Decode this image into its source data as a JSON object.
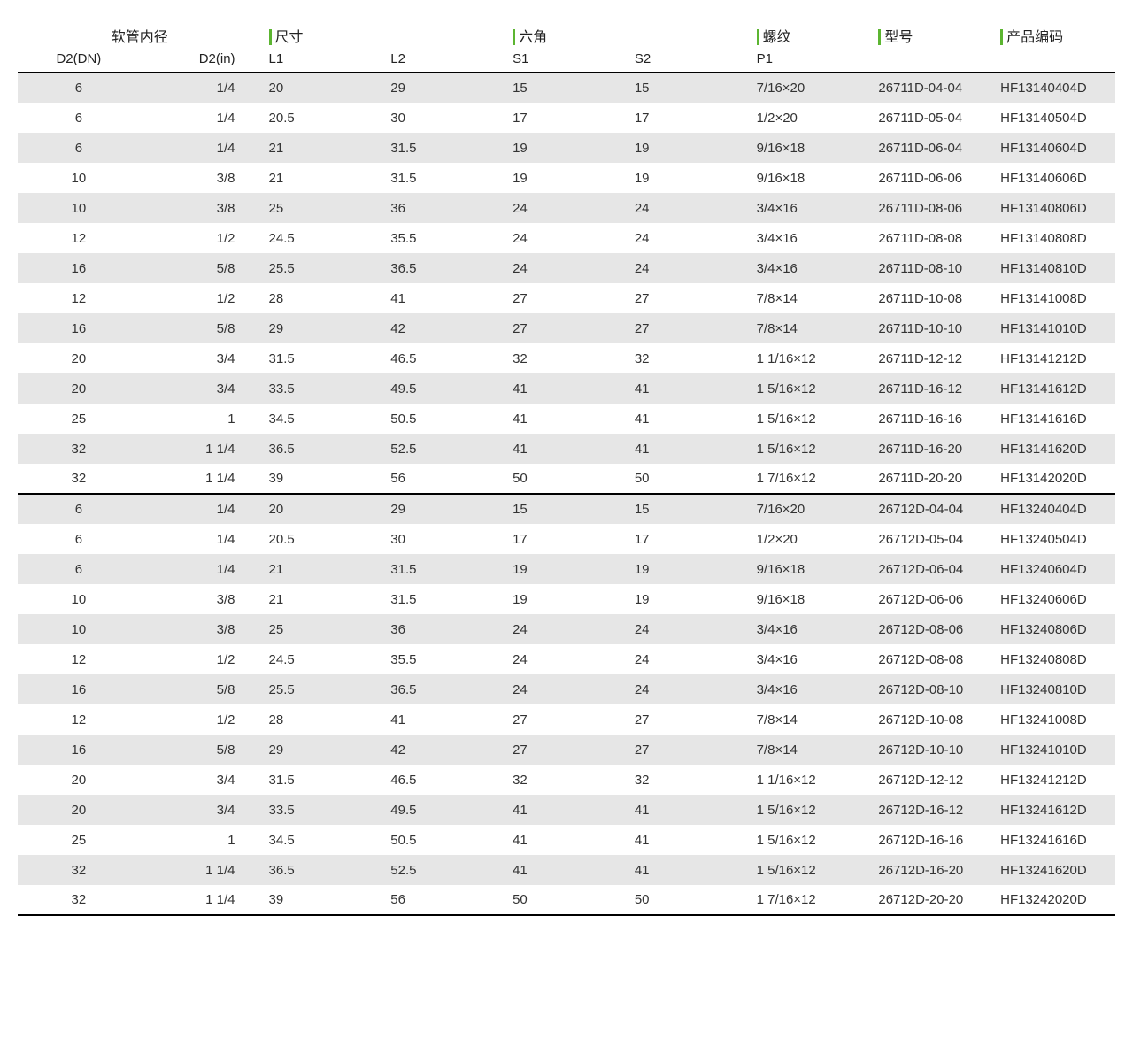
{
  "table": {
    "background_colors": {
      "odd": "#e6e6e6",
      "even": "#ffffff"
    },
    "accent_color": "#5cb531",
    "border_color": "#000000",
    "font_family": "Arial, Microsoft YaHei, sans-serif",
    "font_size_header": 16,
    "font_size_body": 15,
    "groups": [
      {
        "label": "软管内径",
        "span": 2,
        "marker": false
      },
      {
        "label": "尺寸",
        "span": 2,
        "marker": true
      },
      {
        "label": "六角",
        "span": 2,
        "marker": true
      },
      {
        "label": "螺纹",
        "span": 1,
        "marker": true
      },
      {
        "label": "型号",
        "span": 1,
        "marker": true
      },
      {
        "label": "产品编码",
        "span": 1,
        "marker": true
      }
    ],
    "columns": [
      "D2(DN)",
      "D2(in)",
      "L1",
      "L2",
      "S1",
      "S2",
      "P1",
      "",
      ""
    ],
    "column_classes": [
      "c0",
      "c1",
      "c2",
      "c3",
      "c4",
      "c5",
      "c6",
      "c7",
      "c8"
    ],
    "section_divider_after": 14,
    "rows": [
      [
        "6",
        "1/4",
        "20",
        "29",
        "15",
        "15",
        "7/16×20",
        "26711D-04-04",
        "HF13140404D"
      ],
      [
        "6",
        "1/4",
        "20.5",
        "30",
        "17",
        "17",
        "1/2×20",
        "26711D-05-04",
        "HF13140504D"
      ],
      [
        "6",
        "1/4",
        "21",
        "31.5",
        "19",
        "19",
        "9/16×18",
        "26711D-06-04",
        "HF13140604D"
      ],
      [
        "10",
        "3/8",
        "21",
        "31.5",
        "19",
        "19",
        "9/16×18",
        "26711D-06-06",
        "HF13140606D"
      ],
      [
        "10",
        "3/8",
        "25",
        "36",
        "24",
        "24",
        "3/4×16",
        "26711D-08-06",
        "HF13140806D"
      ],
      [
        "12",
        "1/2",
        "24.5",
        "35.5",
        "24",
        "24",
        "3/4×16",
        "26711D-08-08",
        "HF13140808D"
      ],
      [
        "16",
        "5/8",
        "25.5",
        "36.5",
        "24",
        "24",
        "3/4×16",
        "26711D-08-10",
        "HF13140810D"
      ],
      [
        "12",
        "1/2",
        "28",
        "41",
        "27",
        "27",
        "7/8×14",
        "26711D-10-08",
        "HF13141008D"
      ],
      [
        "16",
        "5/8",
        "29",
        "42",
        "27",
        "27",
        "7/8×14",
        "26711D-10-10",
        "HF13141010D"
      ],
      [
        "20",
        "3/4",
        "31.5",
        "46.5",
        "32",
        "32",
        "1 1/16×12",
        "26711D-12-12",
        "HF13141212D"
      ],
      [
        "20",
        "3/4",
        "33.5",
        "49.5",
        "41",
        "41",
        "1 5/16×12",
        "26711D-16-12",
        "HF13141612D"
      ],
      [
        "25",
        "1",
        "34.5",
        "50.5",
        "41",
        "41",
        "1 5/16×12",
        "26711D-16-16",
        "HF13141616D"
      ],
      [
        "32",
        "1 1/4",
        "36.5",
        "52.5",
        "41",
        "41",
        "1 5/16×12",
        "26711D-16-20",
        "HF13141620D"
      ],
      [
        "32",
        "1 1/4",
        "39",
        "56",
        "50",
        "50",
        "1 7/16×12",
        "26711D-20-20",
        "HF13142020D"
      ],
      [
        "6",
        "1/4",
        "20",
        "29",
        "15",
        "15",
        "7/16×20",
        "26712D-04-04",
        "HF13240404D"
      ],
      [
        "6",
        "1/4",
        "20.5",
        "30",
        "17",
        "17",
        "1/2×20",
        "26712D-05-04",
        "HF13240504D"
      ],
      [
        "6",
        "1/4",
        "21",
        "31.5",
        "19",
        "19",
        "9/16×18",
        "26712D-06-04",
        "HF13240604D"
      ],
      [
        "10",
        "3/8",
        "21",
        "31.5",
        "19",
        "19",
        "9/16×18",
        "26712D-06-06",
        "HF13240606D"
      ],
      [
        "10",
        "3/8",
        "25",
        "36",
        "24",
        "24",
        "3/4×16",
        "26712D-08-06",
        "HF13240806D"
      ],
      [
        "12",
        "1/2",
        "24.5",
        "35.5",
        "24",
        "24",
        "3/4×16",
        "26712D-08-08",
        "HF13240808D"
      ],
      [
        "16",
        "5/8",
        "25.5",
        "36.5",
        "24",
        "24",
        "3/4×16",
        "26712D-08-10",
        "HF13240810D"
      ],
      [
        "12",
        "1/2",
        "28",
        "41",
        "27",
        "27",
        "7/8×14",
        "26712D-10-08",
        "HF13241008D"
      ],
      [
        "16",
        "5/8",
        "29",
        "42",
        "27",
        "27",
        "7/8×14",
        "26712D-10-10",
        "HF13241010D"
      ],
      [
        "20",
        "3/4",
        "31.5",
        "46.5",
        "32",
        "32",
        "1 1/16×12",
        "26712D-12-12",
        "HF13241212D"
      ],
      [
        "20",
        "3/4",
        "33.5",
        "49.5",
        "41",
        "41",
        "1 5/16×12",
        "26712D-16-12",
        "HF13241612D"
      ],
      [
        "25",
        "1",
        "34.5",
        "50.5",
        "41",
        "41",
        "1 5/16×12",
        "26712D-16-16",
        "HF13241616D"
      ],
      [
        "32",
        "1 1/4",
        "36.5",
        "52.5",
        "41",
        "41",
        "1 5/16×12",
        "26712D-16-20",
        "HF13241620D"
      ],
      [
        "32",
        "1 1/4",
        "39",
        "56",
        "50",
        "50",
        "1 7/16×12",
        "26712D-20-20",
        "HF13242020D"
      ]
    ]
  }
}
